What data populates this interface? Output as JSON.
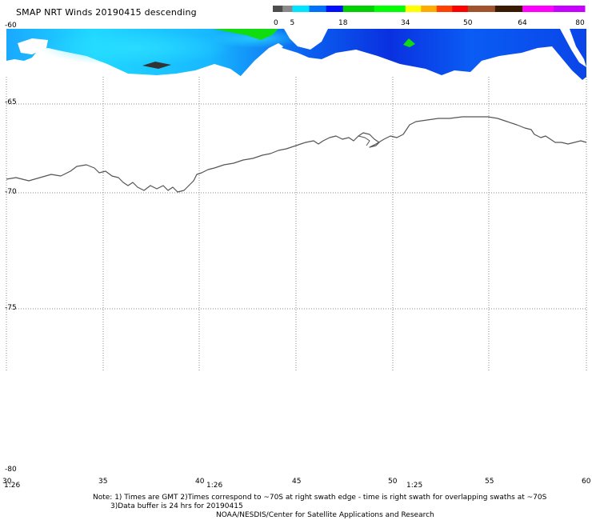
{
  "title": "SMAP NRT Winds  20190415 descending",
  "colorbar": {
    "labels": [
      "0",
      "5",
      "18",
      "34",
      "50",
      "64",
      "80"
    ],
    "segments": [
      {
        "from": 0,
        "to": 5,
        "colors": [
          "#4d4d4d",
          "#8a8a8a"
        ]
      },
      {
        "from": 5,
        "to": 18,
        "colors": [
          "#00e5ff",
          "#0070ff",
          "#0010ff"
        ]
      },
      {
        "from": 18,
        "to": 34,
        "colors": [
          "#00d000",
          "#00ff00"
        ]
      },
      {
        "from": 34,
        "to": 50,
        "colors": [
          "#ffff00",
          "#ffaa00",
          "#ff4000",
          "#ff0000"
        ]
      },
      {
        "from": 50,
        "to": 64,
        "colors": [
          "#a0522d",
          "#3a1a00"
        ]
      },
      {
        "from": 64,
        "to": 80,
        "colors": [
          "#ff00ff",
          "#c800ff"
        ]
      }
    ]
  },
  "map": {
    "lat_labels": [
      "-60",
      "-65",
      "-70",
      "-75",
      "-80"
    ],
    "lon_labels": [
      "30",
      "35",
      "40",
      "45",
      "50",
      "55",
      "60"
    ],
    "time_labels": [
      "1:26",
      "1:26",
      "1:25"
    ]
  },
  "notes": {
    "line1": "Note: 1) Times are GMT 2)Times correspond to ~70S at right swath edge - time is right swath for overlapping swaths at ~70S",
    "line2": "3)Data buffer is 24 hrs for 20190415",
    "line3": "NOAA/NESDIS/Center for Satellite Applications and Research"
  },
  "colors": {
    "wind_light": "#1cc6ff",
    "wind_mid": "#0a7aff",
    "wind_dark": "#0a35e0",
    "wind_green": "#10dc10",
    "wind_gray": "#333333",
    "coast": "#555555",
    "grid": "#888888"
  }
}
